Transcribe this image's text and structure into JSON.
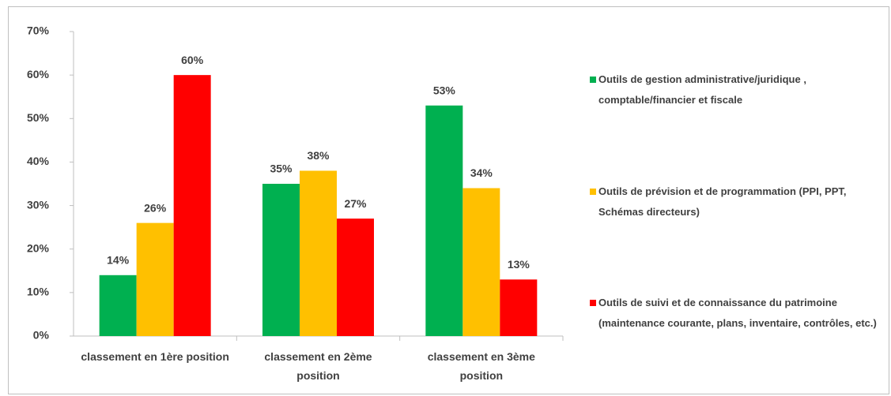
{
  "chart_data": {
    "type": "bar",
    "categories": [
      "classement en 1ère position",
      "classement en 2ème position",
      "classement en 3ème position"
    ],
    "series": [
      {
        "name": "Outils de gestion administrative/juridique , comptable/financier et fiscale",
        "color": "#00b050",
        "values": [
          14,
          35,
          53
        ],
        "value_labels": [
          "14%",
          "35%",
          "53%"
        ]
      },
      {
        "name": "Outils de prévision et de programmation (PPI, PPT, Schémas directeurs)",
        "color": "#ffc000",
        "values": [
          26,
          38,
          34
        ],
        "value_labels": [
          "26%",
          "38%",
          "34%"
        ]
      },
      {
        "name": "Outils de suivi et de connaissance du patrimoine (maintenance courante, plans, inventaire, contrôles, etc.)",
        "color": "#ff0000",
        "values": [
          60,
          27,
          13
        ],
        "value_labels": [
          "60%",
          "27%",
          "13%"
        ]
      }
    ],
    "ylim": [
      0,
      70
    ],
    "yticks": [
      {
        "value": 0,
        "label": "0%"
      },
      {
        "value": 10,
        "label": "10%"
      },
      {
        "value": 20,
        "label": "20%"
      },
      {
        "value": 30,
        "label": "30%"
      },
      {
        "value": 40,
        "label": "40%"
      },
      {
        "value": 50,
        "label": "50%"
      },
      {
        "value": 60,
        "label": "60%"
      },
      {
        "value": 70,
        "label": "70%"
      }
    ],
    "legend": "right"
  }
}
